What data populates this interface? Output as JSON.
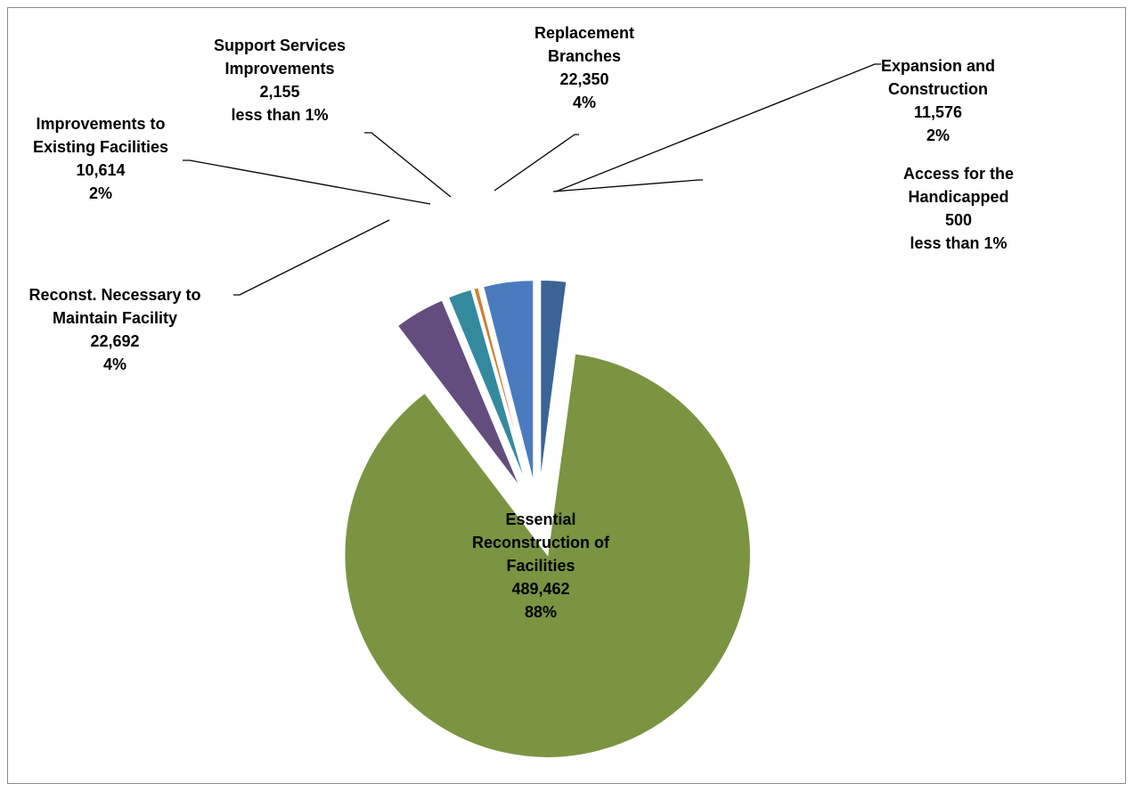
{
  "chart_data": {
    "type": "pie",
    "title": "",
    "slices": [
      {
        "label_lines": [
          "Expansion and",
          "Construction"
        ],
        "value": 11576,
        "value_text": "11,576",
        "pct_text": "2%",
        "color": "#3b6496"
      },
      {
        "label_lines": [
          "Access for the",
          "Handicapped"
        ],
        "value": 500,
        "value_text": "500",
        "pct_text": "less than 1%",
        "color": "#8b2a2a"
      },
      {
        "label_lines": [
          "Essential",
          "Reconstruction of",
          "Facilities"
        ],
        "value": 489462,
        "value_text": "489,462",
        "pct_text": "88%",
        "color": "#7a9442"
      },
      {
        "label_lines": [
          "Reconst. Necessary to",
          "Maintain Facility"
        ],
        "value": 22692,
        "value_text": "22,692",
        "pct_text": "4%",
        "color": "#634d7e"
      },
      {
        "label_lines": [
          "Improvements to",
          "Existing Facilities"
        ],
        "value": 10614,
        "value_text": "10,614",
        "pct_text": "2%",
        "color": "#338a9e"
      },
      {
        "label_lines": [
          "Support Services",
          "Improvements"
        ],
        "value": 2155,
        "value_text": "2,155",
        "pct_text": "less than 1%",
        "color": "#d17f35"
      },
      {
        "label_lines": [
          "Replacement",
          "Branches"
        ],
        "value": 22350,
        "value_text": "22,350",
        "pct_text": "4%",
        "color": "#4b7bbf"
      }
    ],
    "legend": "none",
    "label_position": "outside-with-leader-lines"
  }
}
